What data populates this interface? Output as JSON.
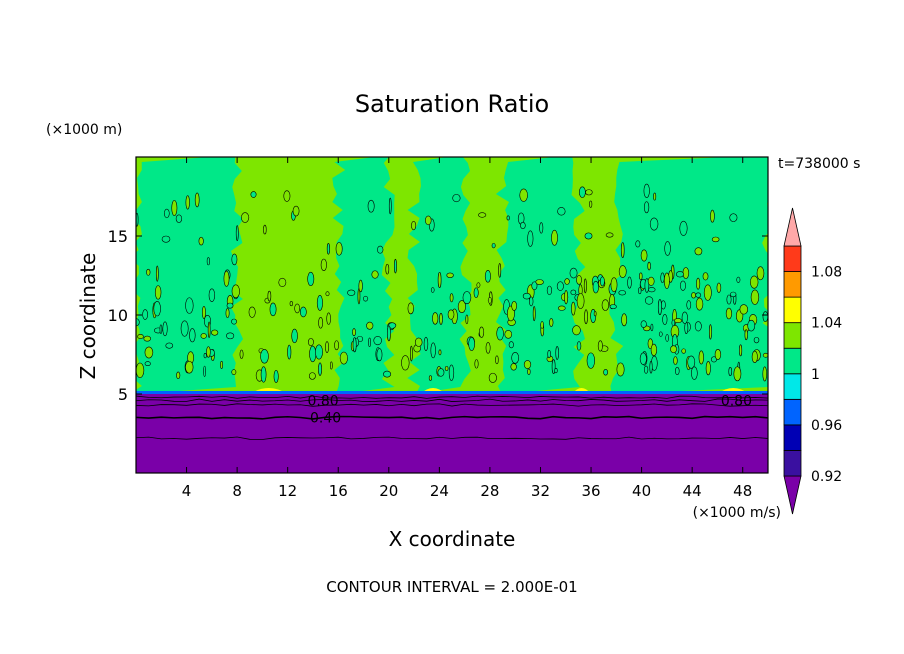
{
  "chart_data": {
    "type": "heatmap",
    "title": "Saturation Ratio",
    "xlabel": "X coordinate",
    "ylabel": "Z coordinate",
    "x_unit": "(×1000 m/s)",
    "y_unit": "(×1000 m)",
    "time_label": "t=738000 s",
    "footer": "CONTOUR INTERVAL = 2.000E-01",
    "xlim": [
      0,
      50
    ],
    "ylim": [
      0,
      20
    ],
    "x_ticks": [
      4,
      8,
      12,
      16,
      20,
      24,
      28,
      32,
      36,
      40,
      44,
      48
    ],
    "y_ticks": [
      5,
      10,
      15
    ],
    "colorbar": {
      "levels": [
        {
          "label": "",
          "color": "#7a00a8"
        },
        {
          "label": "0.92",
          "color": "#3a10a0"
        },
        {
          "label": "",
          "color": "#0000b4"
        },
        {
          "label": "0.96",
          "color": "#0064ff"
        },
        {
          "label": "",
          "color": "#00e8e8"
        },
        {
          "label": "1",
          "color": "#00e888"
        },
        {
          "label": "",
          "color": "#7ee600"
        },
        {
          "label": "1.04",
          "color": "#ffff00"
        },
        {
          "label": "",
          "color": "#ff9a00"
        },
        {
          "label": "1.08",
          "color": "#ff3a1a"
        },
        {
          "label": "",
          "color": "#ffa8a8"
        }
      ]
    },
    "contour_labels": [
      {
        "text": "0.80",
        "x": 14.8,
        "z": 4.6
      },
      {
        "text": "0.40",
        "x": 15.0,
        "z": 3.5
      },
      {
        "text": "0.80",
        "x": 47.5,
        "z": 4.6
      }
    ],
    "cloud_base_z": 5.0,
    "regions": {
      "subsaturated": {
        "z": [
          0,
          5.0
        ],
        "color": "#7a00a8"
      },
      "upper_background": {
        "color": "#7ee600"
      },
      "saturated_columns": {
        "color": "#00e888",
        "x_ranges": [
          [
            0,
            8
          ],
          [
            16,
            20
          ],
          [
            22,
            26
          ],
          [
            29,
            35
          ],
          [
            38,
            50
          ]
        ]
      },
      "supersaturated_patches": {
        "color": "#ffff00",
        "x_ranges": [
          [
            9,
            12
          ],
          [
            22.5,
            24.5
          ],
          [
            34.5,
            36
          ],
          [
            46,
            48.5
          ]
        ]
      }
    }
  }
}
